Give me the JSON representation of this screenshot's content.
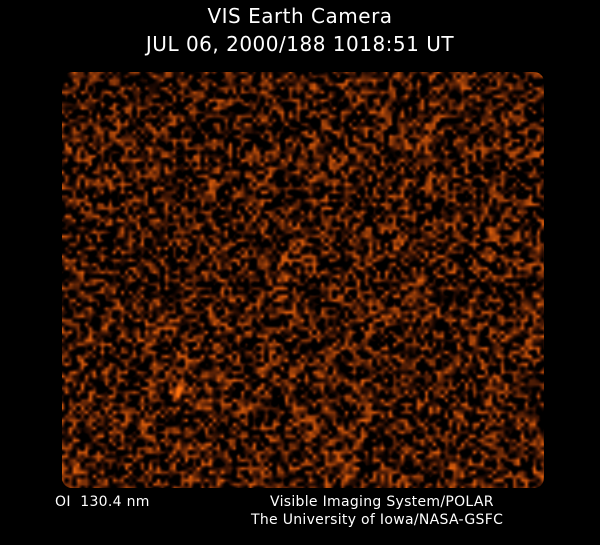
{
  "header": {
    "title": "VIS Earth Camera",
    "timestamp": "JUL 06, 2000/188 1018:51 UT"
  },
  "image": {
    "description_colors": {
      "background": "#000000",
      "dark": "#4a1406",
      "mid": "#7a2a10",
      "bright": "#d8701c"
    }
  },
  "footer": {
    "band": "OI  130.4 nm",
    "credit_line1": "Visible Imaging System/POLAR",
    "credit_line2": "The University of Iowa/NASA-GSFC"
  }
}
